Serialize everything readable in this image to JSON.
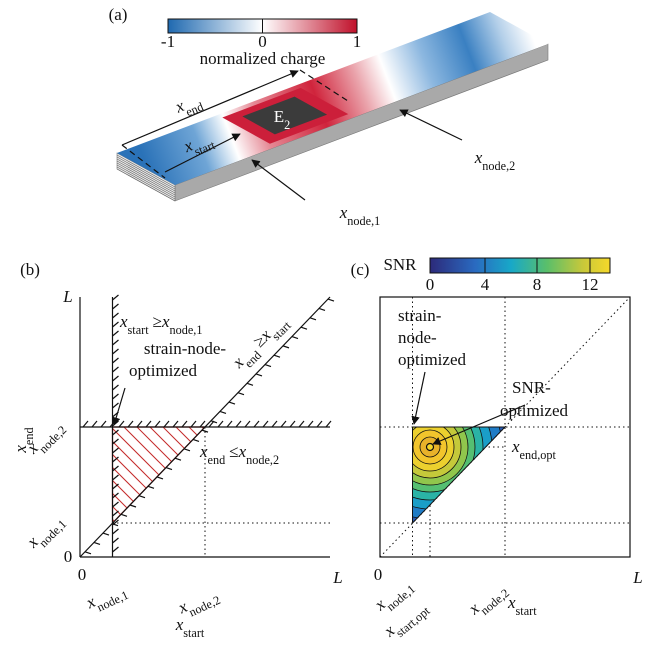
{
  "panel_a": {
    "label": "(a)",
    "colorbar_ticks": [
      "-1",
      "0",
      "1"
    ],
    "colorbar_label": "normalized charge",
    "electrode": {
      "main": "E",
      "sub": "2"
    },
    "x_end": {
      "main": "x",
      "sub": "end"
    },
    "x_start": {
      "main": "x",
      "sub": "start"
    },
    "x_node_2": {
      "main": "x",
      "sub": "node,2"
    },
    "x_node_1": {
      "main": "x",
      "sub": "node,1"
    }
  },
  "panel_b": {
    "label": "(b)",
    "axis_L_y": "L",
    "axis_L_x": "L",
    "origin_y": "0",
    "origin_x": "0",
    "y_title": {
      "main": "x",
      "sub": "end"
    },
    "y_node_2": {
      "main": "x",
      "sub": "node,2"
    },
    "y_node_1": {
      "main": "x",
      "sub": "node,1"
    },
    "x_node_1": {
      "main": "x",
      "sub": "node,1"
    },
    "x_node_2": {
      "main": "x",
      "sub": "node,2"
    },
    "x_title": {
      "main": "x",
      "sub": "start"
    },
    "constraint_start": [
      {
        "main": "x",
        "sub": "start"
      },
      "≥",
      {
        "main": "x",
        "sub": "node,1"
      }
    ],
    "constraint_diag": [
      {
        "main": "x",
        "sub": "end"
      },
      "≥",
      {
        "main": "x",
        "sub": "start"
      }
    ],
    "constraint_end": [
      {
        "main": "x",
        "sub": "end"
      },
      "≤",
      {
        "main": "x",
        "sub": "node,2"
      }
    ],
    "annotation": [
      "strain-node-",
      "optimized"
    ]
  },
  "panel_c": {
    "label": "(c)",
    "colorbar_label": "SNR",
    "colorbar_ticks": [
      "0",
      "4",
      "8",
      "12"
    ],
    "annotation_strain": [
      "strain-",
      "node-",
      "optimized"
    ],
    "annotation_snr": [
      "SNR-",
      "optimized"
    ],
    "x_end_opt": {
      "main": "x",
      "sub": "end,opt"
    },
    "origin": "0",
    "x_node_1": {
      "main": "x",
      "sub": "node,1"
    },
    "x_start_opt": {
      "main": "x",
      "sub": "start,opt"
    },
    "x_node_2": {
      "main": "x",
      "sub": "node,2"
    },
    "x_title": {
      "main": "x",
      "sub": "start"
    },
    "axis_L": "L"
  }
}
